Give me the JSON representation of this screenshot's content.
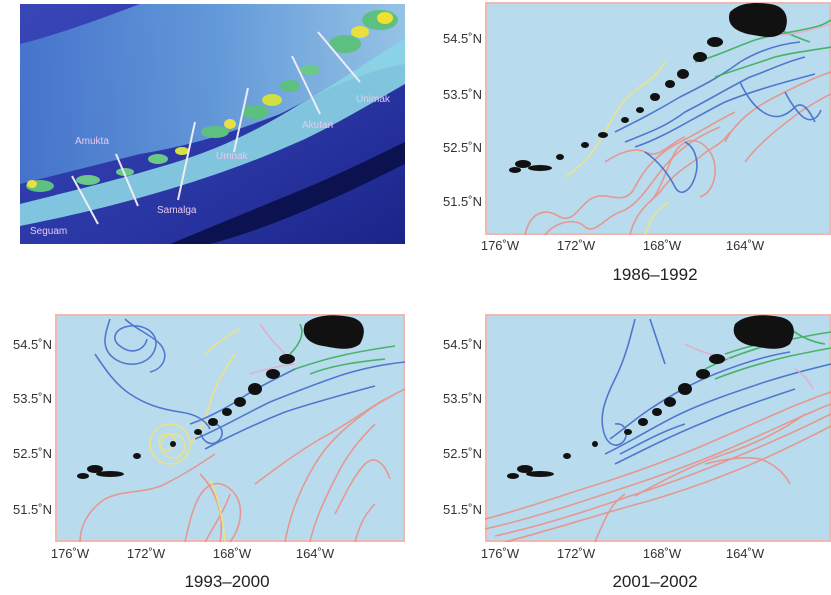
{
  "satellite_panel": {
    "labels": {
      "seguam": "Seguam",
      "amukta": "Amukta",
      "samalga": "Samalga",
      "umnak": "Umnak",
      "akutan": "Akutan",
      "unimak": "Unimak"
    }
  },
  "maps": [
    {
      "caption": "1986–1992",
      "lat_ticks": [
        "54.5˚N",
        "53.5˚N",
        "52.5˚N",
        "51.5˚N"
      ],
      "lon_ticks": [
        "176˚W",
        "172˚W",
        "168˚W",
        "164˚W"
      ]
    },
    {
      "caption": "1993–2000",
      "lat_ticks": [
        "54.5˚N",
        "53.5˚N",
        "52.5˚N",
        "51.5˚N"
      ],
      "lon_ticks": [
        "176˚W",
        "172˚W",
        "168˚W",
        "164˚W"
      ]
    },
    {
      "caption": "2001–2002",
      "lat_ticks": [
        "54.5˚N",
        "53.5˚N",
        "52.5˚N",
        "51.5˚N"
      ],
      "lon_ticks": [
        "176˚W",
        "172˚W",
        "168˚W",
        "164˚W"
      ]
    }
  ],
  "colors": {
    "ocean": "#b8dcee",
    "land": "#111111",
    "track_red": "#f08878",
    "track_blue": "#3f66c8",
    "track_green": "#3cae5a",
    "track_yellow": "#f2e27a",
    "track_pink": "#e9a8c8",
    "frame": "#f0b8b0"
  }
}
